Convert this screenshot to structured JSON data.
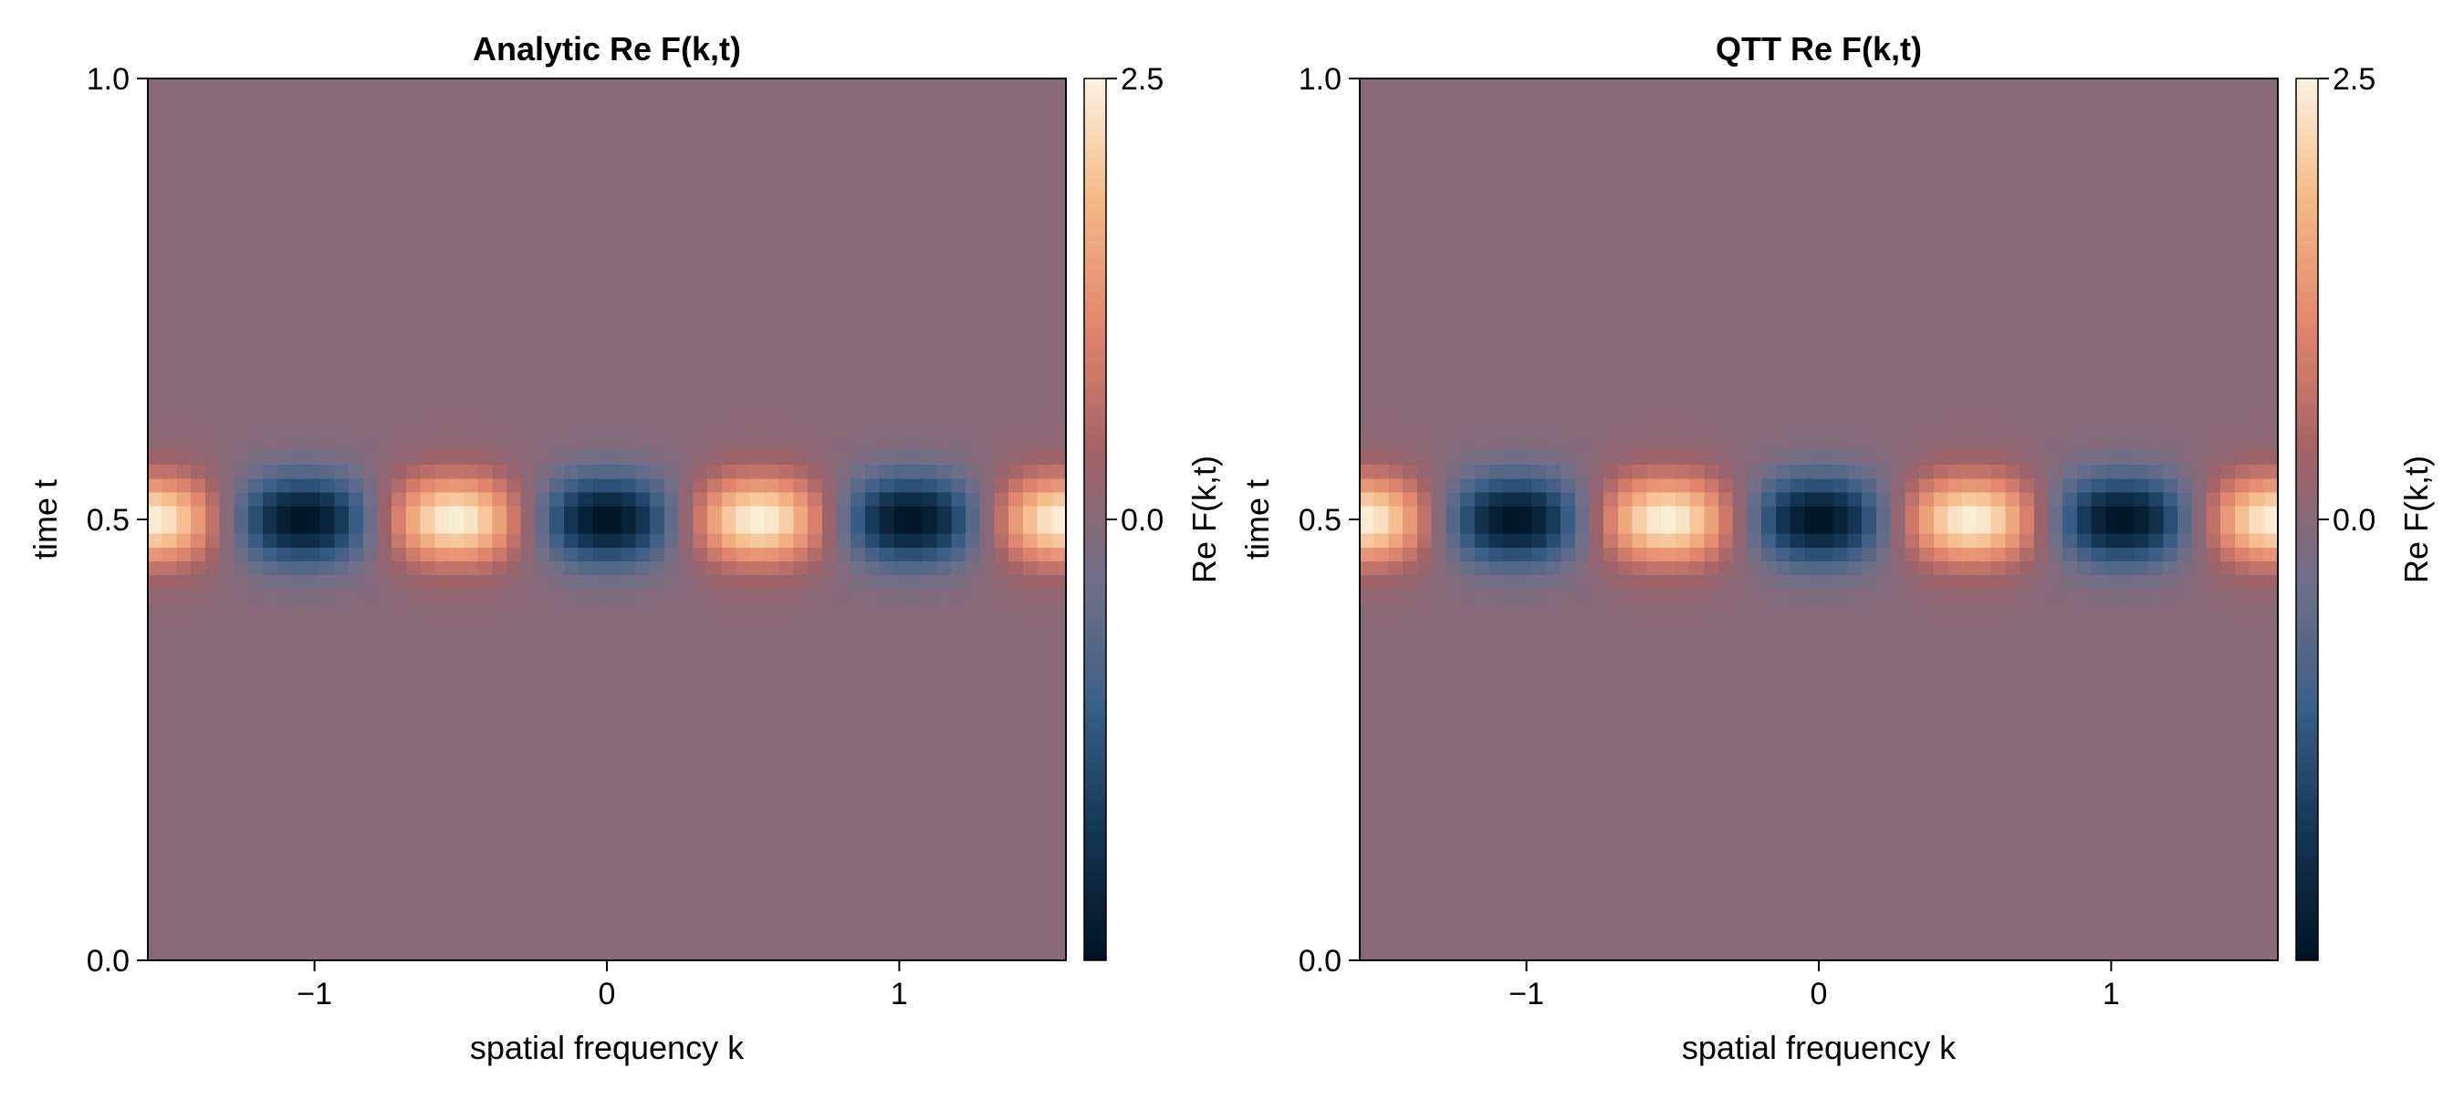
{
  "chart_data": [
    {
      "type": "heatmap",
      "title": "Analytic Re F(k,t)",
      "xlabel": "spatial frequency k",
      "ylabel": "time t",
      "xlim": [
        -1.57,
        1.57
      ],
      "ylim": [
        0.0,
        1.0
      ],
      "xticks": [
        -1,
        0,
        1
      ],
      "xtick_labels": [
        "−1",
        "0",
        "1"
      ],
      "yticks": [
        0.0,
        0.5,
        1.0
      ],
      "ytick_labels": [
        "0.0",
        "0.5",
        "1.0"
      ],
      "grid": false,
      "grid_resolution": [
        64,
        64
      ],
      "field": {
        "expression": "2.5 * cos(2*pi*k/1.04 + 2*pi*0.52) * exp(-((t-0.5)^2)/(2*0.035^2))",
        "peak_value": 2.5,
        "peaks_k": [
          -1.56,
          -0.52,
          0.52,
          1.56
        ],
        "troughs_k": [
          -1.04,
          0.0,
          1.04
        ],
        "center_t": 0.5,
        "envelope_sigma_t": 0.035
      },
      "colorbar": {
        "label": "Re F(k,t)",
        "range": [
          -2.5,
          2.5
        ],
        "ticks": [
          0.0,
          2.5
        ],
        "tick_labels": [
          "0.0",
          "2.5"
        ],
        "colormap": [
          "#001423",
          "#133553",
          "#3a5f85",
          "#6f7089",
          "#a16266",
          "#e0846c",
          "#f4b784",
          "#fbf3dd"
        ]
      }
    },
    {
      "type": "heatmap",
      "title": "QTT Re F(k,t)",
      "xlabel": "spatial frequency k",
      "ylabel": "time t",
      "xlim": [
        -1.57,
        1.57
      ],
      "ylim": [
        0.0,
        1.0
      ],
      "xticks": [
        -1,
        0,
        1
      ],
      "xtick_labels": [
        "−1",
        "0",
        "1"
      ],
      "yticks": [
        0.0,
        0.5,
        1.0
      ],
      "ytick_labels": [
        "0.0",
        "0.5",
        "1.0"
      ],
      "grid": false,
      "grid_resolution": [
        64,
        64
      ],
      "field": {
        "expression": "2.5 * cos(2*pi*k/1.04 + 2*pi*0.52) * exp(-((t-0.5)^2)/(2*0.035^2))",
        "peak_value": 2.5,
        "peaks_k": [
          -1.56,
          -0.52,
          0.52,
          1.56
        ],
        "troughs_k": [
          -1.04,
          0.0,
          1.04
        ],
        "center_t": 0.5,
        "envelope_sigma_t": 0.035
      },
      "colorbar": {
        "label": "Re F(k,t)",
        "range": [
          -2.5,
          2.5
        ],
        "ticks": [
          0.0,
          2.5
        ],
        "tick_labels": [
          "0.0",
          "2.5"
        ],
        "colormap": [
          "#001423",
          "#133553",
          "#3a5f85",
          "#6f7089",
          "#a16266",
          "#e0846c",
          "#f4b784",
          "#fbf3dd"
        ]
      }
    }
  ]
}
